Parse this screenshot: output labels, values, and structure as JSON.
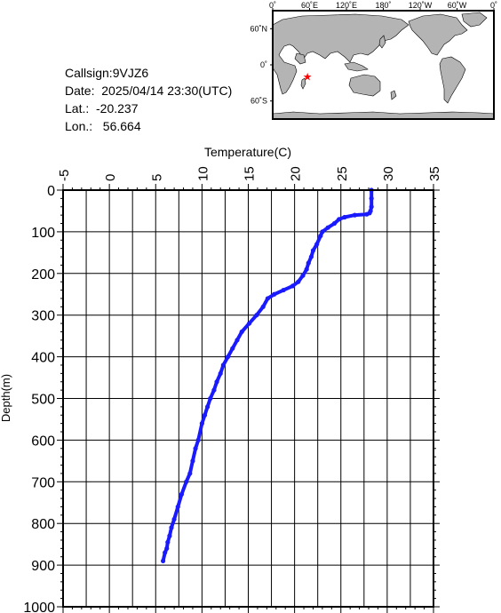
{
  "station": {
    "callsign_label": "Callsign:9VJZ6",
    "date_label": "Date:  2025/04/14 23:30(UTC)",
    "lat_label": "Lat.:  -20.237",
    "lon_label": "Lon.:   56.664"
  },
  "map": {
    "lon_labels": [
      "0˚",
      "60˚E",
      "120˚E",
      "180˚",
      "120˚W",
      "60˚W",
      "0˚"
    ],
    "lat_labels": [
      "60˚N",
      "0˚",
      "60˚S"
    ],
    "marker_lat": -20.237,
    "marker_lon": 56.664,
    "ocean_color": "#ffffff",
    "land_color": "#b4b4b4",
    "marker_color": "#ff0000"
  },
  "chart_data": {
    "type": "line",
    "xlabel": "Temperature(C)",
    "ylabel": "Depth(m)",
    "xlim": [
      -5,
      35
    ],
    "ylim": [
      0,
      1000
    ],
    "x_ticks": [
      "-5",
      "0",
      "5",
      "10",
      "15",
      "20",
      "25",
      "30",
      "35"
    ],
    "y_ticks": [
      "0",
      "100",
      "200",
      "300",
      "400",
      "500",
      "600",
      "700",
      "800",
      "900",
      "1000"
    ],
    "grid": true,
    "line_color": "#1a1aff",
    "series": [
      {
        "temperature": [
          28.3,
          28.3,
          28.3,
          28.2,
          28.1,
          27.8,
          26.5,
          25.4,
          24.8,
          24.3,
          23.6,
          23.0,
          22.8,
          22.4,
          22.0,
          21.8,
          21.5,
          21.3,
          20.9,
          20.4,
          19.8,
          18.8,
          17.8,
          17.1,
          16.6,
          15.9,
          15.1,
          14.3,
          13.8,
          13.3,
          12.8,
          12.3,
          12.0,
          11.6,
          11.3,
          10.9,
          10.6,
          10.3,
          10.0,
          9.6,
          9.3,
          9.0,
          8.7,
          8.3,
          7.8,
          7.4,
          7.0,
          6.7,
          6.5,
          6.3,
          6.2,
          6.0,
          5.8
        ],
        "depth": [
          0,
          20,
          40,
          50,
          55,
          58,
          60,
          65,
          70,
          80,
          90,
          100,
          110,
          130,
          145,
          160,
          175,
          190,
          205,
          220,
          230,
          240,
          250,
          260,
          280,
          300,
          320,
          340,
          360,
          380,
          400,
          420,
          440,
          460,
          480,
          500,
          520,
          540,
          560,
          600,
          620,
          650,
          680,
          700,
          730,
          760,
          790,
          810,
          830,
          845,
          860,
          870,
          890
        ]
      }
    ]
  }
}
